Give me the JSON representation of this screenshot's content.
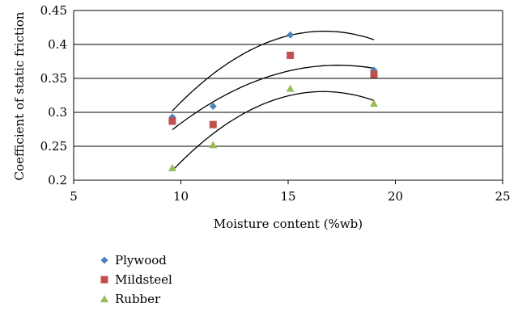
{
  "chart_data": {
    "type": "scatter",
    "xlabel": "Moisture content (%wb)",
    "ylabel": "Coefficient of static friction",
    "xlim": [
      5,
      25
    ],
    "ylim": [
      0.2,
      0.45
    ],
    "xticks": [
      "5",
      "10",
      "15",
      "20",
      "25"
    ],
    "yticks": [
      "0.2",
      "0.25",
      "0.3",
      "0.35",
      "0.4",
      "0.45"
    ],
    "grid": "horizontal",
    "legend": "bottom-left",
    "series": [
      {
        "name": "Plywood",
        "marker": "diamond",
        "color": "#4f81bd",
        "x": [
          9.6,
          11.5,
          15.1,
          19.0
        ],
        "y": [
          0.293,
          0.309,
          0.414,
          0.362
        ],
        "trend": [
          -0.00233,
          0.0778,
          -0.23
        ]
      },
      {
        "name": "Mildsteel",
        "marker": "square",
        "color": "#c0504d",
        "x": [
          9.6,
          11.5,
          15.1,
          19.0
        ],
        "y": [
          0.287,
          0.282,
          0.384,
          0.356
        ],
        "trend": [
          -0.00159,
          0.0551,
          -0.108
        ]
      },
      {
        "name": "Rubber",
        "marker": "triangle",
        "color": "#9bbb59",
        "x": [
          9.6,
          11.5,
          15.1,
          19.0
        ],
        "y": [
          0.218,
          0.252,
          0.335,
          0.313
        ],
        "trend": [
          -0.00235,
          0.0782,
          -0.32
        ]
      }
    ]
  }
}
